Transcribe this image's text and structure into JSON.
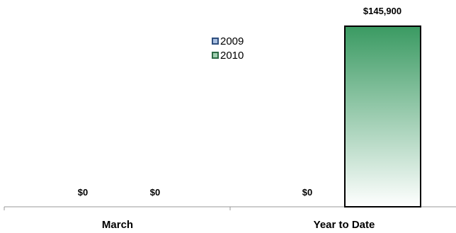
{
  "chart_data": {
    "type": "bar",
    "categories": [
      "March",
      "Year to Date"
    ],
    "series": [
      {
        "name": "2009",
        "values": [
          0,
          0
        ],
        "labels": [
          "$0",
          "$0"
        ]
      },
      {
        "name": "2010",
        "values": [
          0,
          145900
        ],
        "labels": [
          "$0",
          "$145,900"
        ]
      }
    ],
    "ylim": [
      0,
      145900
    ],
    "grid": false,
    "legend_position": "top-center",
    "colors": {
      "series_2009": "#2f4f7f",
      "series_2009_fill": "#a9bfe0",
      "series_2010_top": "#3a9a62",
      "series_2010_bottom": "#ffffff",
      "axis": "#999999",
      "bar_border": "#000000"
    }
  }
}
